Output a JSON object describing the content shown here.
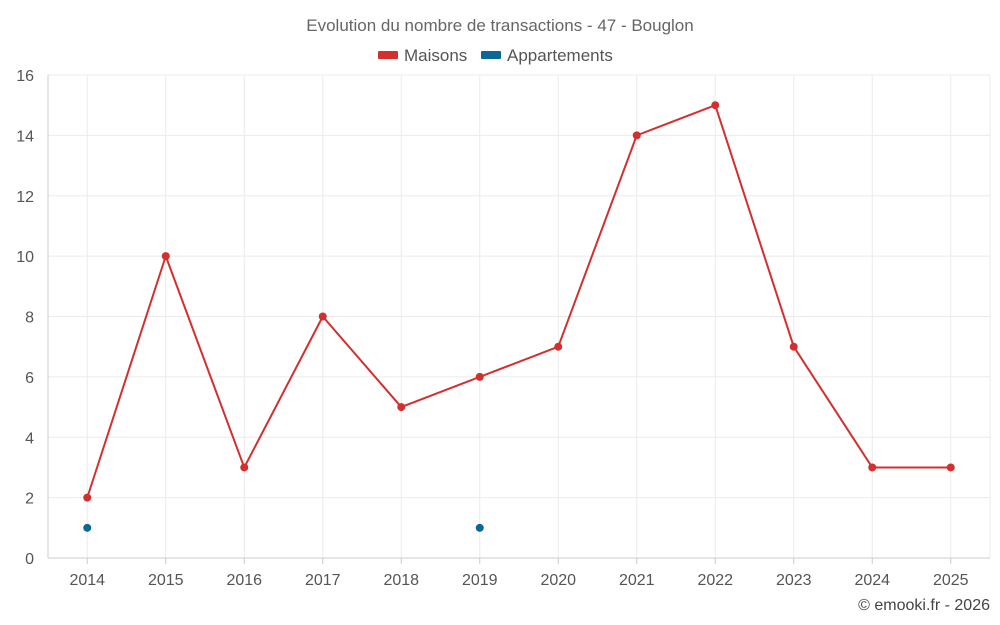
{
  "chart_data": {
    "type": "line",
    "title": "Evolution du nombre de transactions - 47 - Bouglon",
    "xlabel": "",
    "ylabel": "",
    "categories": [
      "2014",
      "2015",
      "2016",
      "2017",
      "2018",
      "2019",
      "2020",
      "2021",
      "2022",
      "2023",
      "2024",
      "2025"
    ],
    "ylim": [
      0,
      16
    ],
    "yticks": [
      0,
      2,
      4,
      6,
      8,
      10,
      12,
      14,
      16
    ],
    "grid": true,
    "legend_position": "top-center",
    "series": [
      {
        "name": "Maisons",
        "color": "#d32f2f",
        "values": [
          2,
          10,
          3,
          8,
          5,
          6,
          7,
          14,
          15,
          7,
          3,
          3
        ]
      },
      {
        "name": "Appartements",
        "color": "#0a6796",
        "values": [
          1,
          null,
          null,
          null,
          null,
          1,
          null,
          null,
          null,
          null,
          null,
          null
        ]
      }
    ]
  },
  "credit": "© emooki.fr - 2026"
}
